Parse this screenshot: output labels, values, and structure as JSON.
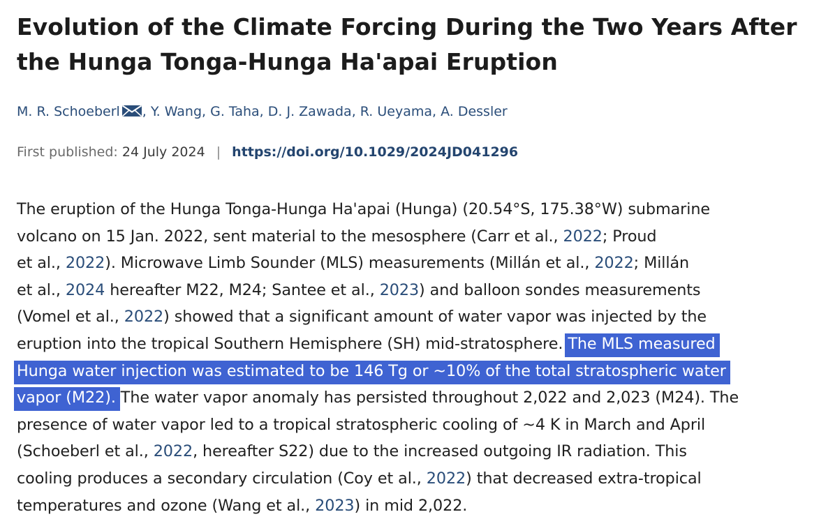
{
  "title": {
    "line1": "Evolution of the Climate Forcing During the Two Years After",
    "line2": "the Hunga Tonga-Hunga Ha'apai Eruption"
  },
  "authors": {
    "first": "M. R. Schoeberl",
    "rest": ", Y. Wang, G. Taha, D. J. Zawada, R. Ueyama, A. Dessler",
    "icon": "mail-icon"
  },
  "publication": {
    "label": "First published:",
    "date": "24 July 2024",
    "separator": "|",
    "doi": "https://doi.org/10.1029/2024JD041296"
  },
  "abstract": {
    "l1": {
      "a": "The eruption of the Hunga Tonga-Hunga Ha'apai (Hunga) (20.54°S, 175.38°W) submarine"
    },
    "l2": {
      "a": "volcano on 15 Jan. 2022, sent material to the mesosphere (Carr et al., ",
      "r1": "2022",
      "b": "; Proud"
    },
    "l3": {
      "a": "et al., ",
      "r1": "2022",
      "b": "). Microwave Limb Sounder (MLS) measurements (Millán et al., ",
      "r2": "2022",
      "c": "; Millán"
    },
    "l4": {
      "a": "et al., ",
      "r1": "2024",
      "b": " hereafter M22, M24; Santee et al., ",
      "r2": "2023",
      "c": ") and balloon sondes measurements"
    },
    "l5": {
      "a": "(Vomel et al., ",
      "r1": "2022",
      "b": ") showed that a significant amount of water vapor was injected by the"
    },
    "l6": {
      "a": "eruption into the tropical Southern Hemisphere (SH) mid-stratosphere. ",
      "hl": "The MLS measured"
    },
    "l7": {
      "hl": "Hunga water injection was estimated to be 146 Tg or ~10% of the total stratospheric water"
    },
    "l8": {
      "hl": "vapor (M22).",
      "b": " The water vapor anomaly has persisted throughout 2,022 and 2,023 (M24). The"
    },
    "l9": {
      "a": "presence of water vapor led to a tropical stratospheric cooling of ~4 K in March and April"
    },
    "l10": {
      "a": "(Schoeberl et al., ",
      "r1": "2022",
      "b": ", hereafter S22) due to the increased outgoing IR radiation. This"
    },
    "l11": {
      "a": "cooling produces a secondary circulation (Coy et al., ",
      "r1": "2022",
      "b": ") that decreased extra-tropical"
    },
    "l12": {
      "a": "temperatures and ozone (Wang et al., ",
      "r1": "2023",
      "b": ") in mid 2,022."
    }
  },
  "colors": {
    "link": "#2a4d79",
    "doi": "#24456f",
    "highlight": "#3f63d2",
    "text": "#1f1f1f"
  }
}
